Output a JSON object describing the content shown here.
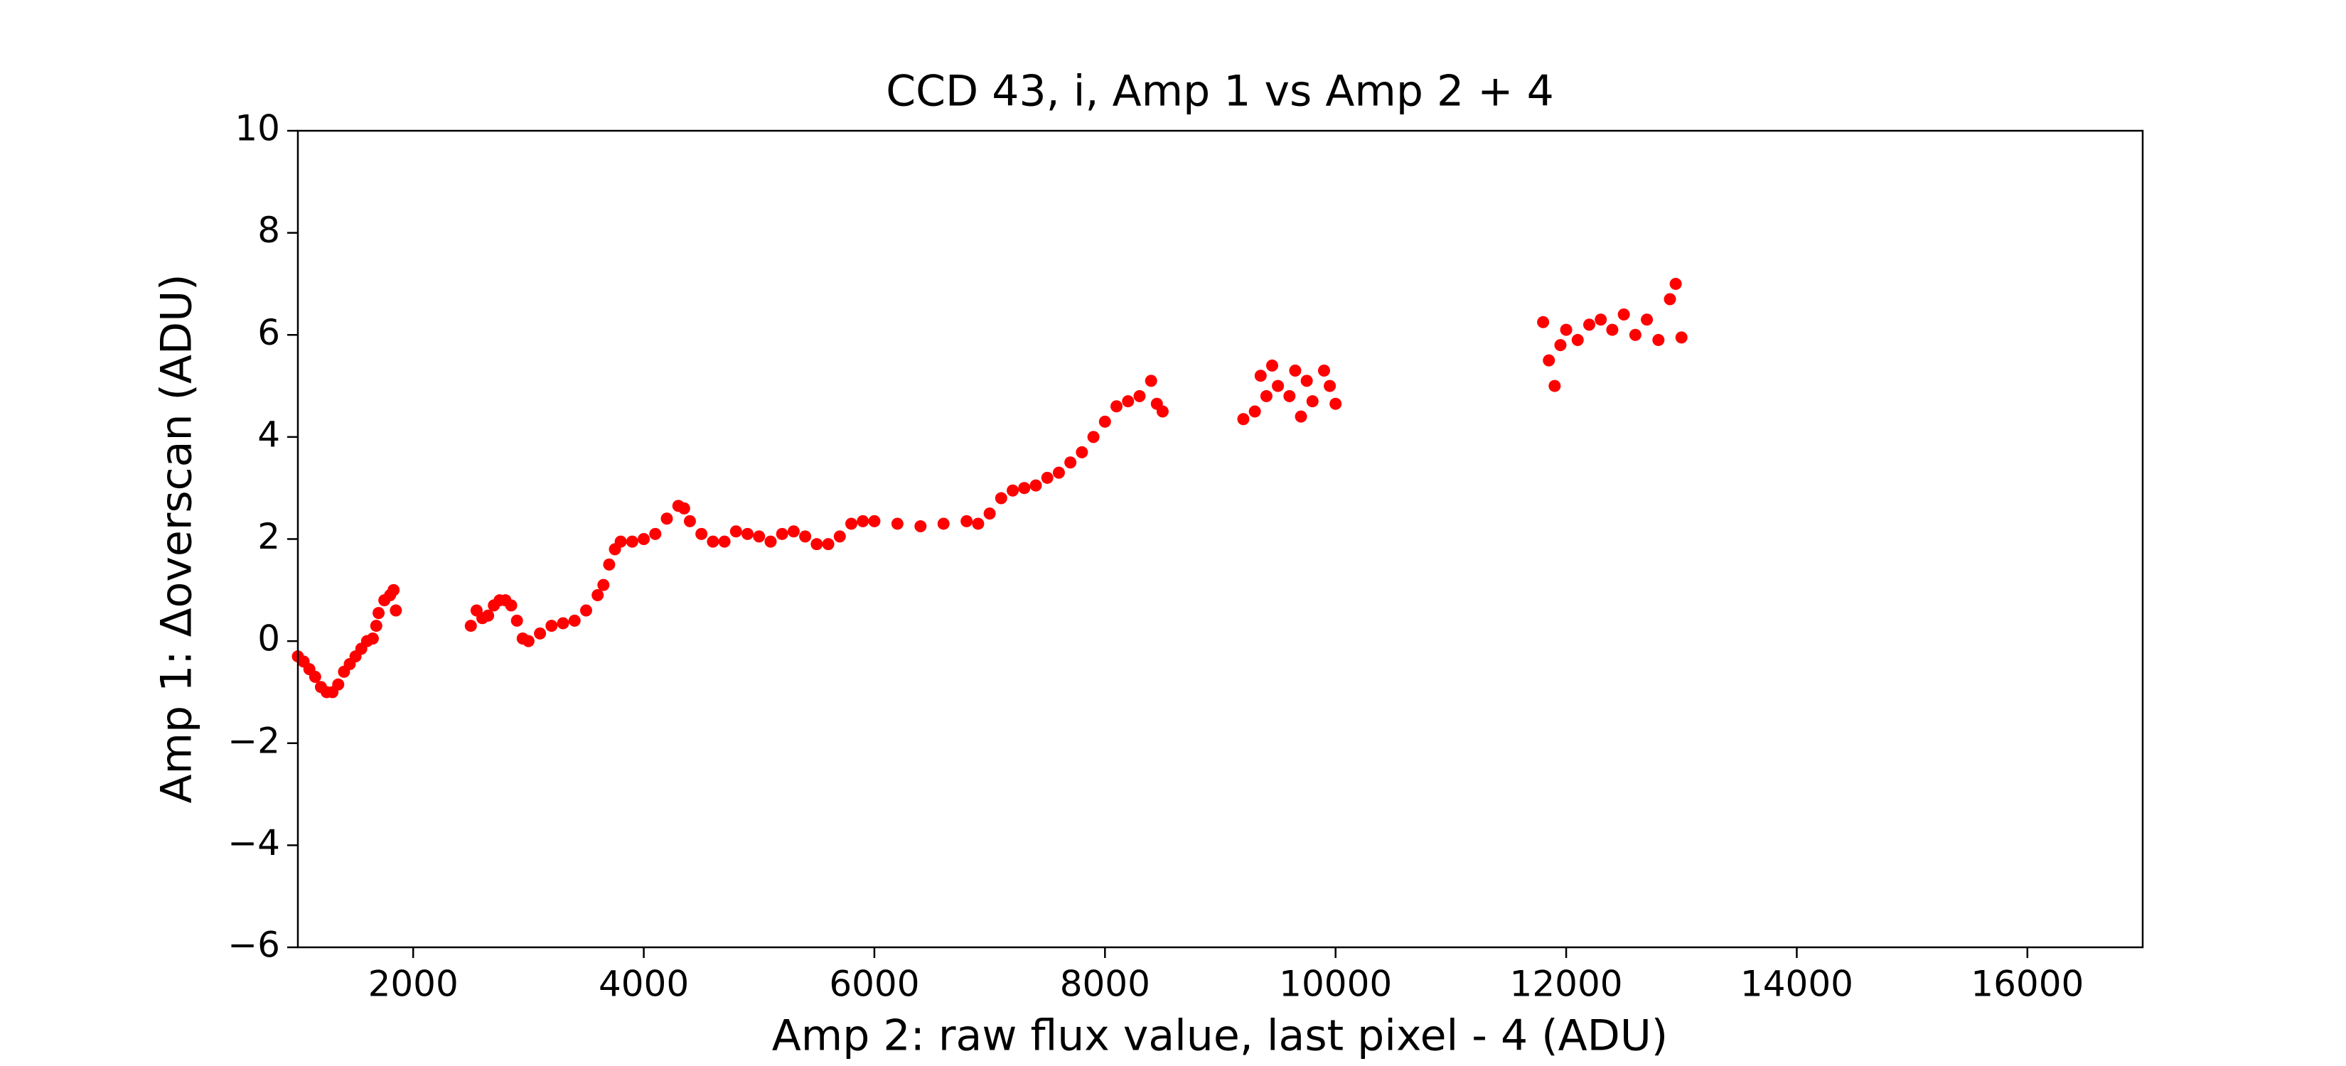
{
  "chart_data": {
    "type": "scatter",
    "title": "CCD 43, i, Amp 1 vs Amp 2 + 4",
    "xlabel": "Amp 2: raw flux value, last pixel - 4 (ADU)",
    "ylabel": "Amp 1: Δoverscan (ADU)",
    "xlim": [
      1000,
      17000
    ],
    "ylim": [
      -6,
      10
    ],
    "xticks": [
      2000,
      4000,
      6000,
      8000,
      10000,
      12000,
      14000,
      16000
    ],
    "yticks": [
      {
        "value": -6,
        "label": "−6"
      },
      {
        "value": -4,
        "label": "−4"
      },
      {
        "value": -2,
        "label": "−2"
      },
      0,
      2,
      4,
      6,
      8,
      10
    ],
    "series": [
      {
        "color": "#ff0000",
        "x": [
          1000,
          1050,
          1100,
          1150,
          1200,
          1250,
          1300,
          1350,
          1400,
          1450,
          1500,
          1550,
          1600,
          1650,
          1680,
          1700,
          1750,
          1800,
          1830,
          1850,
          2500,
          2550,
          2600,
          2650,
          2700,
          2750,
          2800,
          2850,
          2900,
          2950,
          3000,
          3100,
          3200,
          3300,
          3400,
          3500,
          3600,
          3650,
          3700,
          3750,
          3800,
          3900,
          4000,
          4100,
          4200,
          4300,
          4350,
          4400,
          4500,
          4600,
          4700,
          4800,
          4900,
          5000,
          5100,
          5200,
          5300,
          5400,
          5500,
          5600,
          5700,
          5800,
          5900,
          6000,
          6200,
          6400,
          6600,
          6800,
          6900,
          7000,
          7100,
          7200,
          7300,
          7400,
          7500,
          7600,
          7700,
          7800,
          7900,
          8000,
          8100,
          8200,
          8300,
          8400,
          8450,
          8500,
          9200,
          9300,
          9350,
          9400,
          9450,
          9500,
          9600,
          9650,
          9700,
          9750,
          9800,
          9900,
          9950,
          10000,
          11800,
          11850,
          11900,
          11950,
          12000,
          12100,
          12200,
          12300,
          12400,
          12500,
          12600,
          12700,
          12800,
          12900,
          12950,
          13000
        ],
        "values": [
          -0.3,
          -0.4,
          -0.55,
          -0.7,
          -0.9,
          -1.0,
          -1.0,
          -0.85,
          -0.6,
          -0.45,
          -0.3,
          -0.15,
          0.0,
          0.05,
          0.3,
          0.55,
          0.8,
          0.9,
          1.0,
          0.6,
          0.3,
          0.6,
          0.45,
          0.5,
          0.7,
          0.8,
          0.8,
          0.7,
          0.4,
          0.05,
          0.0,
          0.15,
          0.3,
          0.35,
          0.4,
          0.6,
          0.9,
          1.1,
          1.5,
          1.8,
          1.95,
          1.95,
          2.0,
          2.1,
          2.4,
          2.65,
          2.6,
          2.35,
          2.1,
          1.95,
          1.95,
          2.15,
          2.1,
          2.05,
          1.95,
          2.1,
          2.15,
          2.05,
          1.9,
          1.9,
          2.05,
          2.3,
          2.35,
          2.35,
          2.3,
          2.25,
          2.3,
          2.35,
          2.3,
          2.5,
          2.8,
          2.95,
          3.0,
          3.05,
          3.2,
          3.3,
          3.5,
          3.7,
          4.0,
          4.3,
          4.6,
          4.7,
          4.8,
          5.1,
          4.65,
          4.5,
          4.35,
          4.5,
          5.2,
          4.8,
          5.4,
          5.0,
          4.8,
          5.3,
          4.4,
          5.1,
          4.7,
          5.3,
          5.0,
          4.65,
          6.25,
          5.5,
          5.0,
          5.8,
          6.1,
          5.9,
          6.2,
          6.3,
          6.1,
          6.4,
          6.0,
          6.3,
          5.9,
          6.7,
          7.0,
          5.95
        ]
      }
    ]
  }
}
